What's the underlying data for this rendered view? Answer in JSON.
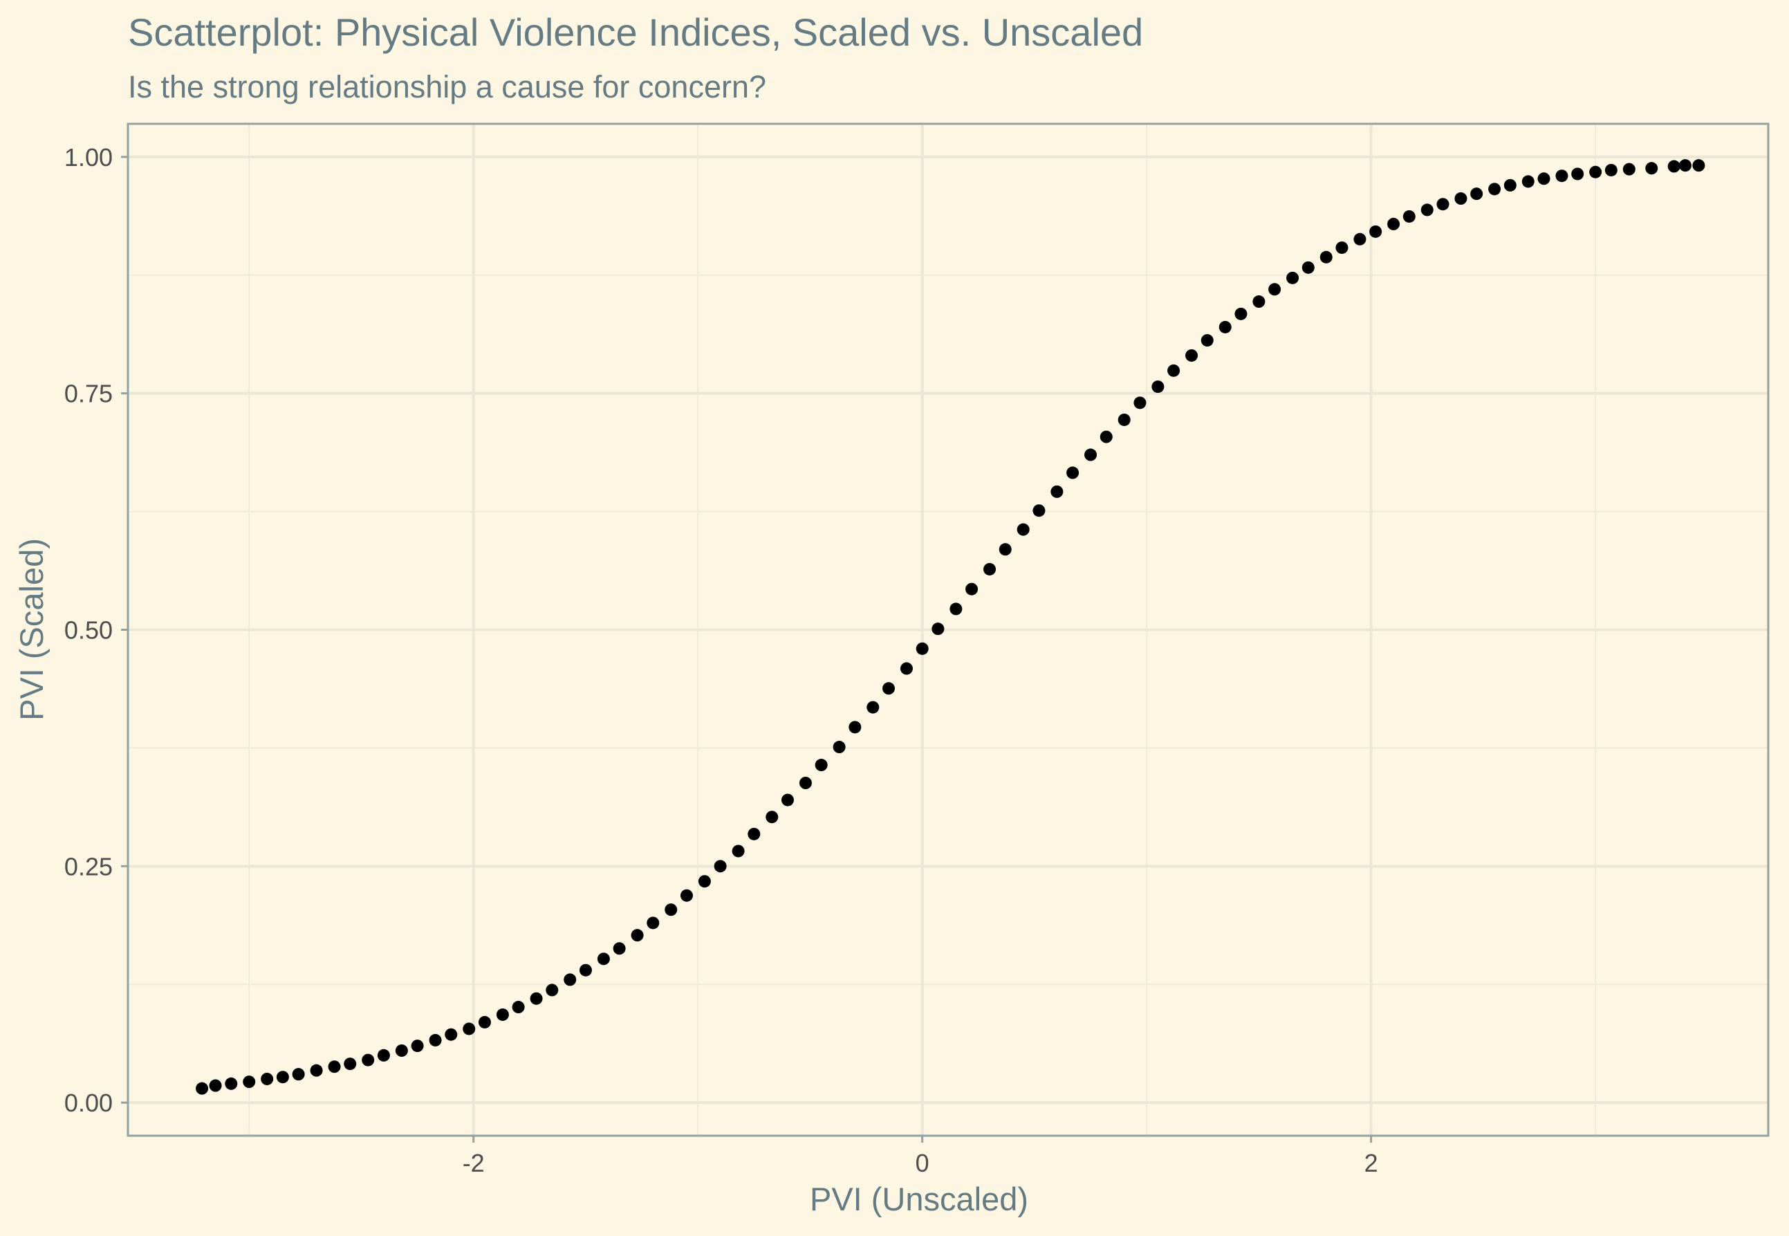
{
  "chart_data": {
    "type": "scatter",
    "title": "Scatterplot: Physical Violence Indices, Scaled vs. Unscaled",
    "subtitle": "Is the strong relationship a cause for concern?",
    "xlabel": "PVI (Unscaled)",
    "ylabel": "PVI (Scaled)",
    "xlim": [
      -3.54,
      3.77
    ],
    "ylim": [
      -0.035,
      1.035
    ],
    "x_ticks": [
      -2,
      0,
      2
    ],
    "x_tick_labels": [
      "-2",
      "0",
      "2"
    ],
    "y_ticks": [
      0,
      0.25,
      0.5,
      0.75,
      1
    ],
    "y_tick_labels": [
      "0.00",
      "0.25",
      "0.50",
      "0.75",
      "1.00"
    ],
    "grid": true,
    "point_color": "#000000",
    "background_color": "#fdf6e3",
    "x": [
      -3.21,
      -3.15,
      -3.08,
      -3.0,
      -2.92,
      -2.85,
      -2.78,
      -2.7,
      -2.62,
      -2.55,
      -2.47,
      -2.4,
      -2.32,
      -2.25,
      -2.17,
      -2.1,
      -2.02,
      -1.95,
      -1.87,
      -1.8,
      -1.72,
      -1.65,
      -1.57,
      -1.5,
      -1.42,
      -1.35,
      -1.27,
      -1.2,
      -1.12,
      -1.05,
      -0.97,
      -0.9,
      -0.82,
      -0.75,
      -0.67,
      -0.6,
      -0.52,
      -0.45,
      -0.37,
      -0.3,
      -0.22,
      -0.15,
      -0.07,
      0.0,
      0.07,
      0.15,
      0.22,
      0.3,
      0.37,
      0.45,
      0.52,
      0.6,
      0.67,
      0.75,
      0.82,
      0.9,
      0.97,
      1.05,
      1.12,
      1.2,
      1.27,
      1.35,
      1.42,
      1.5,
      1.57,
      1.65,
      1.72,
      1.8,
      1.87,
      1.95,
      2.02,
      2.1,
      2.17,
      2.25,
      2.32,
      2.4,
      2.47,
      2.55,
      2.62,
      2.7,
      2.77,
      2.85,
      2.92,
      3.0,
      3.07,
      3.15,
      3.25,
      3.35,
      3.4,
      3.46
    ],
    "y": [
      0.015,
      0.018,
      0.02,
      0.022,
      0.025,
      0.027,
      0.03,
      0.034,
      0.038,
      0.041,
      0.045,
      0.05,
      0.055,
      0.06,
      0.066,
      0.072,
      0.078,
      0.085,
      0.093,
      0.101,
      0.11,
      0.119,
      0.13,
      0.14,
      0.152,
      0.163,
      0.177,
      0.19,
      0.204,
      0.219,
      0.234,
      0.25,
      0.266,
      0.284,
      0.302,
      0.32,
      0.338,
      0.357,
      0.376,
      0.397,
      0.418,
      0.438,
      0.459,
      0.48,
      0.501,
      0.522,
      0.543,
      0.564,
      0.585,
      0.606,
      0.626,
      0.646,
      0.666,
      0.685,
      0.704,
      0.722,
      0.74,
      0.757,
      0.774,
      0.79,
      0.806,
      0.82,
      0.834,
      0.847,
      0.86,
      0.872,
      0.883,
      0.894,
      0.904,
      0.913,
      0.921,
      0.929,
      0.937,
      0.944,
      0.95,
      0.956,
      0.961,
      0.966,
      0.97,
      0.974,
      0.977,
      0.98,
      0.982,
      0.984,
      0.986,
      0.987,
      0.988,
      0.99,
      0.991,
      0.991
    ]
  }
}
